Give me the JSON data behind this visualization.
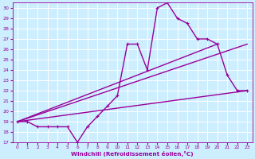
{
  "xlabel": "Windchill (Refroidissement éolien,°C)",
  "bg_color": "#cceeff",
  "grid_color": "#ffffff",
  "line_color": "#990099",
  "xlim": [
    -0.5,
    23.5
  ],
  "ylim": [
    17,
    30.5
  ],
  "xticks": [
    0,
    1,
    2,
    3,
    4,
    5,
    6,
    7,
    8,
    9,
    10,
    11,
    12,
    13,
    14,
    15,
    16,
    17,
    18,
    19,
    20,
    21,
    22,
    23
  ],
  "yticks": [
    17,
    18,
    19,
    20,
    21,
    22,
    23,
    24,
    25,
    26,
    27,
    28,
    29,
    30
  ],
  "series1_x": [
    0,
    1,
    2,
    3,
    4,
    5,
    6,
    7,
    8,
    9,
    10,
    11,
    12,
    13,
    14,
    15,
    16,
    17,
    18,
    19,
    20,
    21,
    22,
    23
  ],
  "series1_y": [
    19.0,
    19.0,
    18.5,
    18.5,
    18.5,
    18.5,
    17.0,
    18.5,
    19.5,
    20.5,
    21.5,
    26.5,
    26.5,
    24.0,
    30.0,
    30.5,
    29.0,
    28.5,
    27.0,
    27.0,
    26.5,
    23.5,
    22.0,
    22.0
  ],
  "series2_x": [
    0,
    23
  ],
  "series2_y": [
    19.0,
    22.0
  ],
  "series3_x": [
    0,
    20
  ],
  "series3_y": [
    19.0,
    26.5
  ],
  "series4_x": [
    0,
    23
  ],
  "series4_y": [
    19.0,
    26.5
  ],
  "lw": 1.0,
  "markersize": 3.5
}
